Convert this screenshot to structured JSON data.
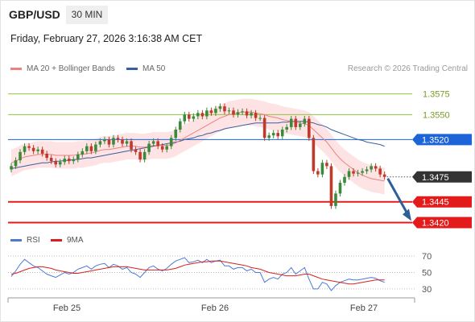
{
  "header": {
    "pair": "GBP/USD",
    "timeframe": "30 MIN",
    "datetime": "Friday, February 27, 2026 3:16:38 AM CET"
  },
  "legend": {
    "ma20_label": "MA 20 + Bollinger Bands",
    "ma50_label": "MA 50",
    "credit": "Research © 2026 Trading Central"
  },
  "indicator_legend": {
    "rsi_label": "RSI",
    "ma9_label": "9MA"
  },
  "colors": {
    "ma20": "#f08080",
    "ma50": "#3a5fa0",
    "resistance": "#8dc63f",
    "pivot": "#1c64d8",
    "support": "#e31b1b",
    "bollinger_fill": "#fde3e3",
    "candle_up": "#3a8a3a",
    "candle_down": "#c0392b",
    "rsi": "#4d79d6",
    "rsi_ma": "#d62020",
    "arrow": "#2d5f9a",
    "current": "#333333"
  },
  "chart_data": [
    {
      "type": "candlestick",
      "title": "GBP/USD 30 MIN",
      "x_ticks": [
        "Feb 25",
        "Feb 26",
        "Feb 27"
      ],
      "ylim": [
        1.3405,
        1.3595
      ],
      "levels": [
        {
          "label": "1.3575",
          "value": 1.3575,
          "kind": "resistance"
        },
        {
          "label": "1.3550",
          "value": 1.355,
          "kind": "resistance"
        },
        {
          "label": "1.3520",
          "value": 1.352,
          "kind": "pivot"
        },
        {
          "label": "1.3475",
          "value": 1.3475,
          "kind": "current"
        },
        {
          "label": "1.3445",
          "value": 1.3445,
          "kind": "support"
        },
        {
          "label": "1.3420",
          "value": 1.342,
          "kind": "support"
        }
      ],
      "close": [
        1.3488,
        1.3495,
        1.3505,
        1.3512,
        1.351,
        1.3506,
        1.3508,
        1.3503,
        1.3498,
        1.3494,
        1.349,
        1.3493,
        1.3497,
        1.3494,
        1.3496,
        1.3502,
        1.3506,
        1.3512,
        1.3506,
        1.3514,
        1.3518,
        1.352,
        1.3514,
        1.3522,
        1.352,
        1.3515,
        1.3518,
        1.3508,
        1.3505,
        1.3496,
        1.3505,
        1.3515,
        1.3518,
        1.3512,
        1.3508,
        1.3512,
        1.3522,
        1.3532,
        1.3542,
        1.355,
        1.3545,
        1.3548,
        1.3552,
        1.3548,
        1.3555,
        1.3552,
        1.3557,
        1.356,
        1.3554,
        1.3555,
        1.355,
        1.3553,
        1.3554,
        1.3549,
        1.3552,
        1.3546,
        1.3546,
        1.3522,
        1.3525,
        1.3528,
        1.3524,
        1.3532,
        1.3535,
        1.3545,
        1.3535,
        1.3539,
        1.3545,
        1.3522,
        1.3482,
        1.3478,
        1.3492,
        1.3488,
        1.344,
        1.3455,
        1.3468,
        1.3475,
        1.3482,
        1.3479,
        1.348,
        1.3482,
        1.3484,
        1.3488,
        1.3485,
        1.3478,
        1.3475
      ],
      "ma20": [
        1.3492,
        1.3494,
        1.3497,
        1.3499,
        1.35,
        1.3501,
        1.3502,
        1.3502,
        1.3502,
        1.3502,
        1.3501,
        1.3501,
        1.3501,
        1.3501,
        1.3501,
        1.3502,
        1.3502,
        1.3503,
        1.3504,
        1.3505,
        1.3507,
        1.3508,
        1.3508,
        1.3509,
        1.351,
        1.3511,
        1.3512,
        1.3512,
        1.3512,
        1.3511,
        1.3511,
        1.3512,
        1.3513,
        1.3513,
        1.3513,
        1.3513,
        1.3514,
        1.3516,
        1.3519,
        1.3522,
        1.3525,
        1.3528,
        1.3531,
        1.3534,
        1.3537,
        1.354,
        1.3543,
        1.3546,
        1.3548,
        1.355,
        1.3551,
        1.3552,
        1.3553,
        1.3553,
        1.3553,
        1.3552,
        1.3551,
        1.355,
        1.3548,
        1.3547,
        1.3546,
        1.3544,
        1.3543,
        1.3542,
        1.3541,
        1.354,
        1.3539,
        1.3537,
        1.3532,
        1.3527,
        1.3522,
        1.3517,
        1.351,
        1.3503,
        1.3497,
        1.3492,
        1.3488,
        1.3484,
        1.348,
        1.3477,
        1.3475,
        1.3473,
        1.3472,
        1.3471,
        1.347
      ],
      "ma50": [
        1.3485,
        1.3486,
        1.3487,
        1.3488,
        1.3489,
        1.349,
        1.3491,
        1.3492,
        1.3492,
        1.3493,
        1.3494,
        1.3494,
        1.3495,
        1.3495,
        1.3496,
        1.3496,
        1.3497,
        1.3498,
        1.3498,
        1.3499,
        1.35,
        1.3501,
        1.3502,
        1.3503,
        1.3504,
        1.3505,
        1.3506,
        1.3507,
        1.3508,
        1.3509,
        1.351,
        1.3511,
        1.3512,
        1.3513,
        1.3514,
        1.3515,
        1.3516,
        1.3517,
        1.3518,
        1.352,
        1.3521,
        1.3522,
        1.3524,
        1.3525,
        1.3527,
        1.3528,
        1.353,
        1.3531,
        1.3533,
        1.3534,
        1.3535,
        1.3536,
        1.3537,
        1.3538,
        1.3539,
        1.354,
        1.354,
        1.354,
        1.354,
        1.354,
        1.354,
        1.3541,
        1.3541,
        1.3542,
        1.3542,
        1.3542,
        1.3542,
        1.3541,
        1.354,
        1.3538,
        1.3537,
        1.3535,
        1.3532,
        1.353,
        1.3528,
        1.3526,
        1.3524,
        1.3522,
        1.352,
        1.3519,
        1.3517,
        1.3516,
        1.3515,
        1.3514,
        1.3512
      ]
    },
    {
      "type": "line",
      "title": "RSI",
      "ylim": [
        25,
        75
      ],
      "y_ticks": [
        70,
        50,
        30
      ],
      "series": [
        {
          "name": "RSI",
          "values": [
            45,
            52,
            60,
            66,
            62,
            58,
            56,
            52,
            48,
            46,
            44,
            47,
            50,
            48,
            50,
            54,
            56,
            58,
            54,
            58,
            60,
            61,
            56,
            60,
            58,
            54,
            56,
            50,
            48,
            44,
            50,
            56,
            58,
            54,
            52,
            55,
            60,
            64,
            66,
            68,
            62,
            63,
            65,
            62,
            66,
            62,
            64,
            65,
            58,
            58,
            54,
            56,
            56,
            52,
            54,
            50,
            50,
            38,
            42,
            44,
            42,
            48,
            50,
            56,
            48,
            52,
            56,
            42,
            30,
            30,
            38,
            36,
            28,
            34,
            38,
            40,
            42,
            41,
            41,
            42,
            43,
            44,
            43,
            40,
            38
          ]
        },
        {
          "name": "9MA",
          "values": [
            48,
            49,
            51,
            53,
            55,
            56,
            57,
            57,
            56,
            55,
            53,
            52,
            51,
            50,
            49,
            49,
            50,
            51,
            52,
            53,
            54,
            55,
            56,
            57,
            57,
            57,
            57,
            56,
            55,
            54,
            53,
            53,
            53,
            53,
            53,
            53,
            54,
            55,
            57,
            59,
            60,
            61,
            62,
            63,
            63,
            64,
            64,
            64,
            63,
            62,
            61,
            60,
            59,
            58,
            56,
            55,
            54,
            52,
            50,
            49,
            48,
            47,
            46,
            46,
            46,
            47,
            48,
            48,
            46,
            44,
            42,
            41,
            40,
            39,
            38,
            37,
            36,
            36,
            37,
            38,
            39,
            40,
            41,
            41,
            41
          ]
        }
      ]
    }
  ]
}
